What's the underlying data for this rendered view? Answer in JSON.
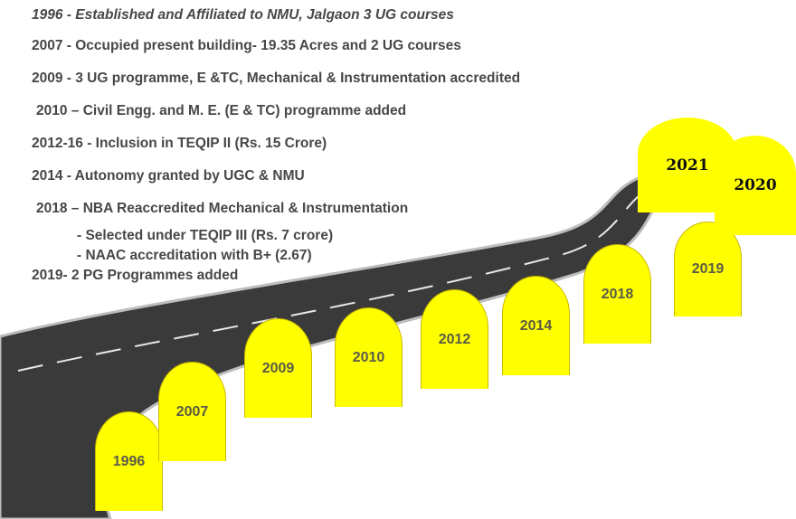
{
  "timeline": {
    "lines": [
      "1996 - Established and Affiliated to NMU, Jalgaon 3 UG courses",
      "2007 - Occupied present building- 19.35 Acres and 2 UG courses",
      "2009 - 3 UG programme, E &TC, Mechanical & Instrumentation accredited",
      "2010 – Civil Engg. and M. E. (E & TC)  programme added",
      "2012-16 - Inclusion in TEQIP II (Rs. 15 Crore)",
      "2014 - Autonomy granted by UGC & NMU",
      "2018 – NBA Reaccredited Mechanical & Instrumentation",
      "- Selected under TEQIP III (Rs. 7 crore)",
      "- NAAC accreditation with B+ (2.67)",
      "2019- 2 PG Programmes added"
    ],
    "milestones": [
      "1996",
      "2007",
      "2009",
      "2010",
      "2012",
      "2014",
      "2018",
      "2019",
      "2021",
      "2020"
    ]
  }
}
